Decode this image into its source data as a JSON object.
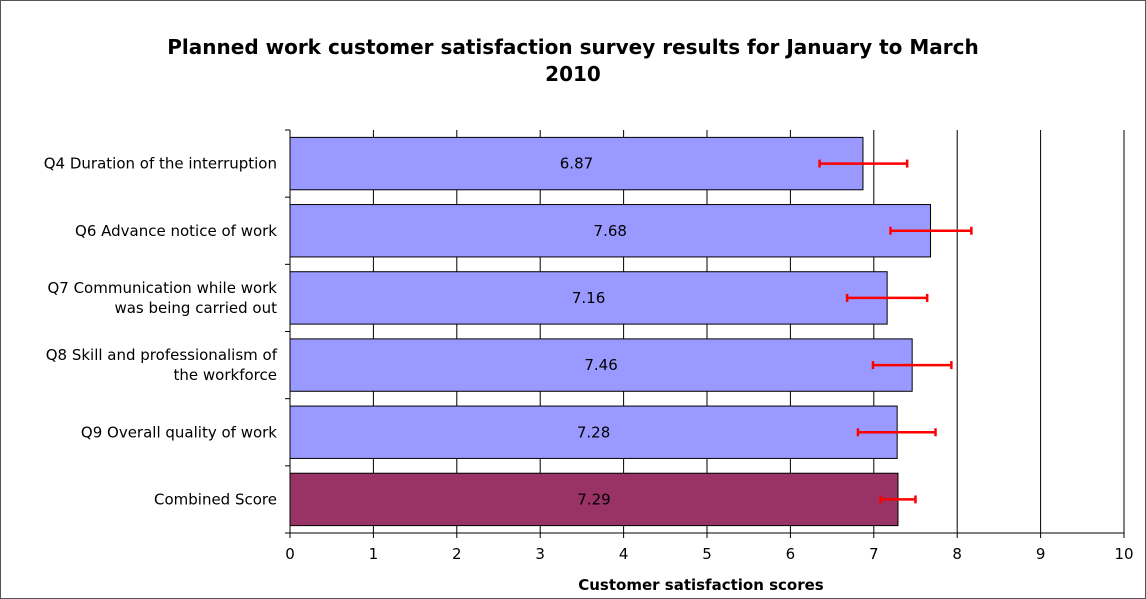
{
  "chart_data": {
    "type": "bar",
    "orientation": "horizontal",
    "title": "Planned work customer satisfaction survey results for January to March\n2010",
    "xlabel": "Customer satisfaction scores",
    "ylabel": "",
    "xlim": [
      0,
      10
    ],
    "x_ticks": [
      "0",
      "1",
      "2",
      "3",
      "4",
      "5",
      "6",
      "7",
      "8",
      "9",
      "10"
    ],
    "grid": "vertical major gridlines",
    "categories": [
      [
        "Q4 Duration of the interruption"
      ],
      [
        "Q6  Advance notice of work"
      ],
      [
        "Q7 Communication while work",
        "was being carried out"
      ],
      [
        "Q8 Skill and professionalism of",
        "the workforce"
      ],
      [
        "Q9 Overall quality of work"
      ],
      [
        "Combined Score"
      ]
    ],
    "values": [
      6.87,
      7.68,
      7.16,
      7.46,
      7.28,
      7.29
    ],
    "data_labels": [
      "6.87",
      "7.68",
      "7.16",
      "7.46",
      "7.28",
      "7.29"
    ],
    "error_bars": [
      [
        6.35,
        7.4
      ],
      [
        7.2,
        8.17
      ],
      [
        6.68,
        7.64
      ],
      [
        6.99,
        7.93
      ],
      [
        6.81,
        7.74
      ],
      [
        7.08,
        7.5
      ]
    ],
    "bar_colors": [
      "#9999ff",
      "#9999ff",
      "#9999ff",
      "#9999ff",
      "#9999ff",
      "#993366"
    ],
    "error_bar_color": "#ff0000",
    "legend": "none"
  }
}
